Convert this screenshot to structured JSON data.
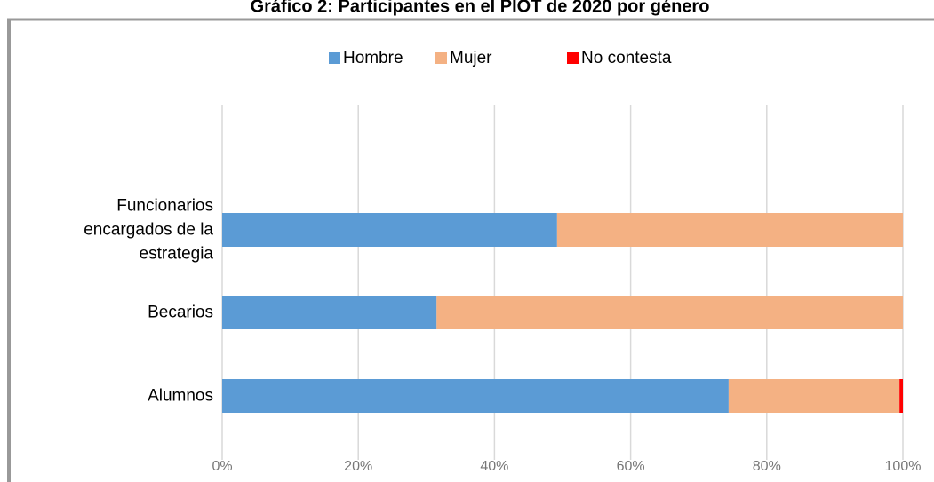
{
  "chart_data": {
    "type": "stacked-barh",
    "title": "Gráfico 2: Participantes en el PIOT de 2020 por género",
    "categories": [
      "Funcionarios encargados de la estrategia",
      "Becarios",
      "Alumnos"
    ],
    "series": [
      {
        "name": "Hombre",
        "color": "#5b9bd5",
        "values": [
          49.2,
          31.5,
          74.4
        ]
      },
      {
        "name": "Mujer",
        "color": "#f4b183",
        "values": [
          50.8,
          68.5,
          25.1
        ]
      },
      {
        "name": "No contesta",
        "color": "#ff0000",
        "values": [
          0,
          0,
          0.5
        ]
      }
    ],
    "xlim": [
      0,
      100
    ],
    "xticks": [
      {
        "value": 0,
        "label": "0%"
      },
      {
        "value": 20,
        "label": "20%"
      },
      {
        "value": 40,
        "label": "40%"
      },
      {
        "value": 60,
        "label": "60%"
      },
      {
        "value": 80,
        "label": "80%"
      },
      {
        "value": 100,
        "label": "100%"
      }
    ],
    "grid": true,
    "legend": "top"
  }
}
